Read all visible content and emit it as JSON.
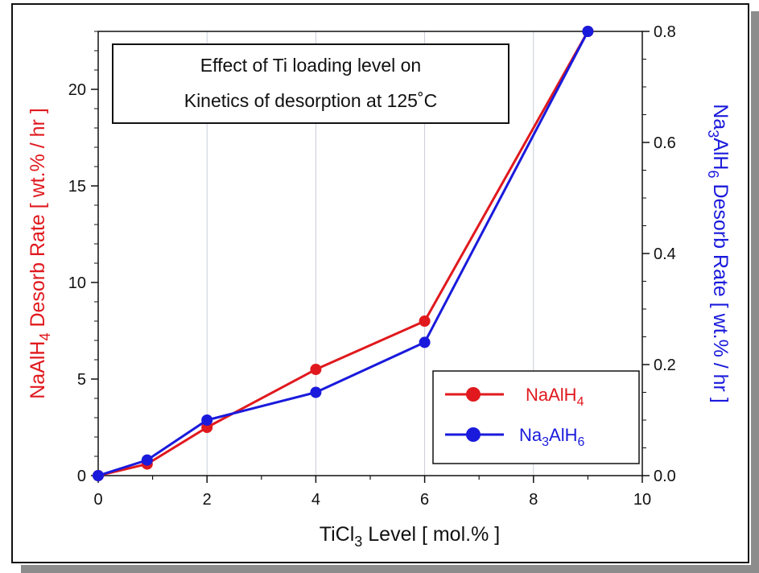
{
  "chart_data": {
    "type": "line",
    "title_lines": [
      "Effect of Ti loading level on",
      "Kinetics of desorption at 125˚C"
    ],
    "xlabel": {
      "main": "TiCl",
      "sub": "3",
      "rest": " Level  [ mol.% ]"
    },
    "ylabel_left": {
      "pre": "NaAlH",
      "sub": "4",
      "post": "  Desorb Rate  [ wt.% / hr ]"
    },
    "ylabel_right": {
      "pre": "Na",
      "sub1": "3",
      "mid": "AlH",
      "sub2": "6",
      "post": " Desorb Rate  [ wt.% / hr ]"
    },
    "xlim": [
      0,
      10
    ],
    "ylim_left": [
      0,
      23
    ],
    "ylim_right": [
      0,
      0.8
    ],
    "x_ticks": [
      0,
      2,
      4,
      6,
      8,
      10
    ],
    "x_tick_labels": [
      "0",
      "2",
      "4",
      "6",
      "8",
      "10"
    ],
    "y_left_ticks": [
      0,
      5,
      10,
      15,
      20
    ],
    "y_left_tick_labels": [
      "0",
      "5",
      "10",
      "15",
      "20"
    ],
    "y_right_ticks": [
      0,
      0.2,
      0.4,
      0.6,
      0.8
    ],
    "y_right_tick_labels": [
      "0.0",
      "0.2",
      "0.4",
      "0.6",
      "0.8"
    ],
    "grid": "vertical",
    "legend_position": "bottom-right",
    "series": [
      {
        "name": "NaAlH4",
        "legend": {
          "pre": "NaAlH",
          "sub": "4"
        },
        "axis": "left",
        "color": "#e0191e",
        "x": [
          0,
          0.9,
          2,
          4,
          6,
          9
        ],
        "y": [
          0,
          0.6,
          2.5,
          5.5,
          8.0,
          23
        ]
      },
      {
        "name": "Na3AlH6",
        "legend": {
          "pre": "Na",
          "sub1": "3",
          "mid": "AlH",
          "sub2": "6"
        },
        "axis": "right",
        "color": "#1a1adc",
        "x": [
          0,
          0.9,
          2,
          4,
          6,
          9
        ],
        "y": [
          0,
          0.028,
          0.1,
          0.15,
          0.24,
          0.8
        ]
      }
    ]
  }
}
